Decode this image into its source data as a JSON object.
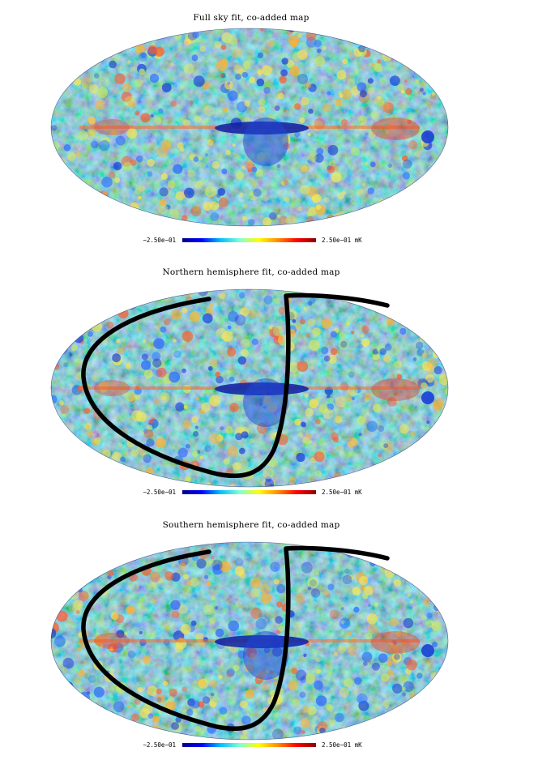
{
  "panels": [
    {
      "title": "Full sky fit, co-added map",
      "has_outline": false
    },
    {
      "title": "Northern hemisphere fit, co-added map",
      "has_outline": true
    },
    {
      "title": "Southern hemisphere fit, co-added map",
      "has_outline": true
    }
  ],
  "colorbar": {
    "min_label": "−2.50e−01",
    "max_label": "2.50e−01",
    "unit": "mK",
    "colors": [
      "#00008b",
      "#0000ff",
      "#00bfff",
      "#7fffd4",
      "#ffff00",
      "#ff8c00",
      "#ff0000",
      "#8b0000"
    ]
  }
}
